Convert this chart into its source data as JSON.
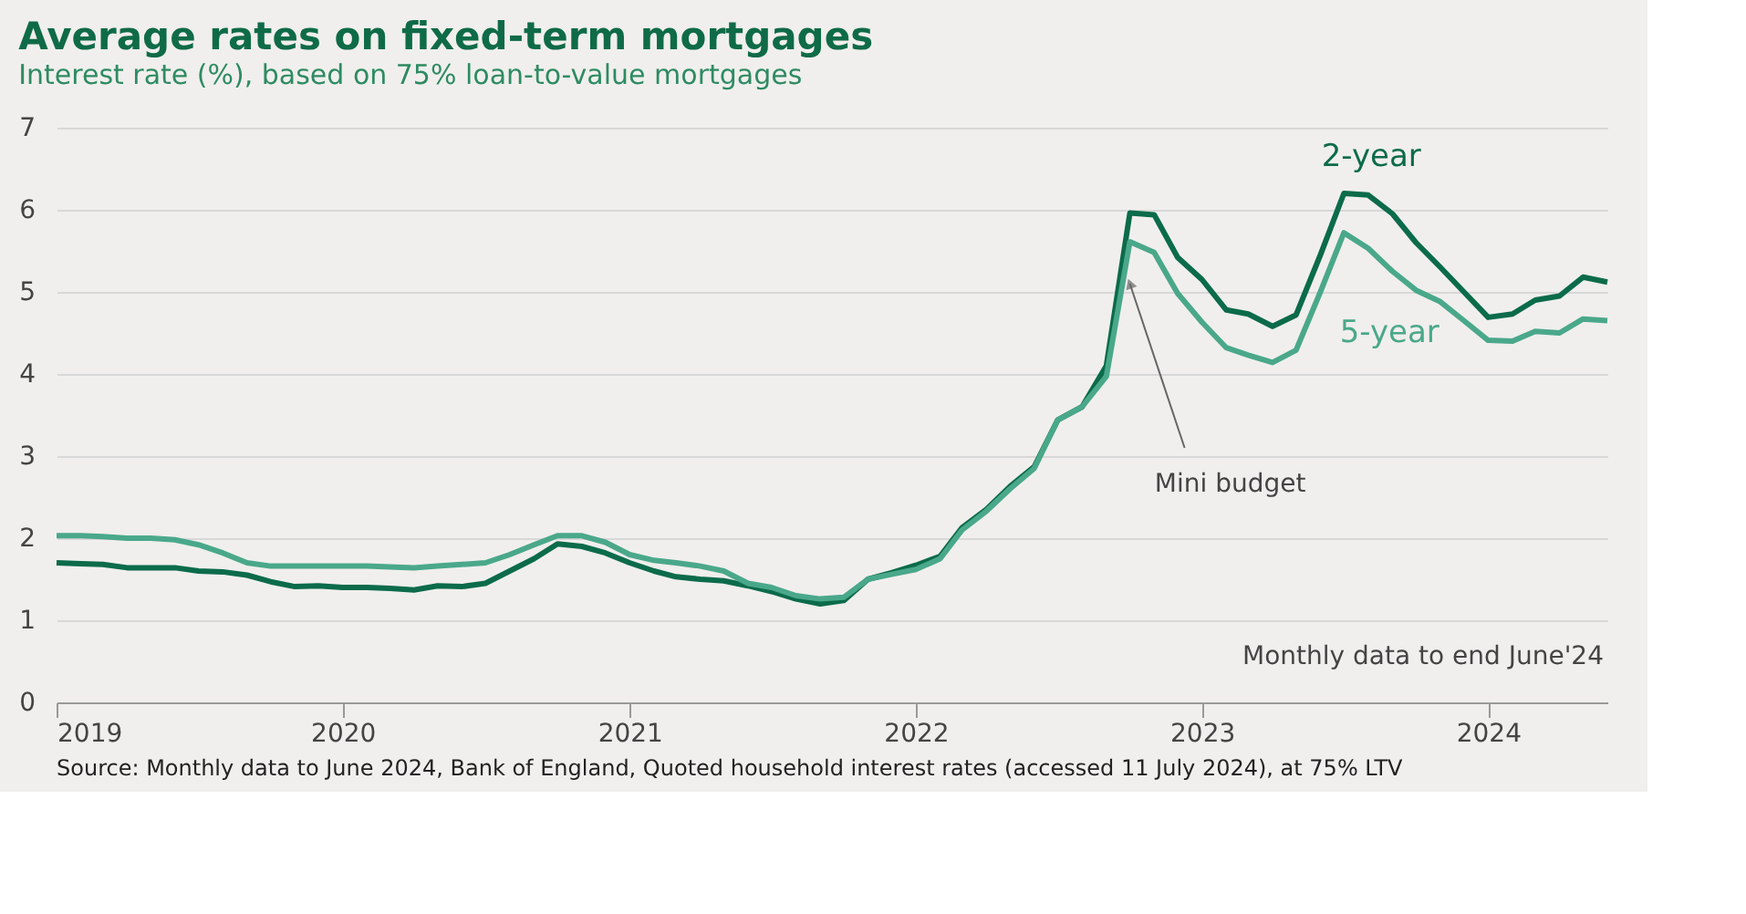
{
  "chart_data": {
    "type": "line",
    "title": "Average rates on fixed-term mortgages",
    "subtitle": "Interest rate (%), based on 75% loan-to-value mortgages",
    "x": [
      "2019-01",
      "2019-02",
      "2019-03",
      "2019-04",
      "2019-05",
      "2019-06",
      "2019-07",
      "2019-08",
      "2019-09",
      "2019-10",
      "2019-11",
      "2019-12",
      "2020-01",
      "2020-02",
      "2020-03",
      "2020-04",
      "2020-05",
      "2020-06",
      "2020-07",
      "2020-08",
      "2020-09",
      "2020-10",
      "2020-11",
      "2020-12",
      "2021-01",
      "2021-02",
      "2021-03",
      "2021-04",
      "2021-05",
      "2021-06",
      "2021-07",
      "2021-08",
      "2021-09",
      "2021-10",
      "2021-11",
      "2021-12",
      "2022-01",
      "2022-02",
      "2022-03",
      "2022-04",
      "2022-05",
      "2022-06",
      "2022-07",
      "2022-08",
      "2022-09",
      "2022-10",
      "2022-11",
      "2022-12",
      "2023-01",
      "2023-02",
      "2023-03",
      "2023-04",
      "2023-05",
      "2023-06",
      "2023-07",
      "2023-08",
      "2023-09",
      "2023-10",
      "2023-11",
      "2023-12",
      "2024-01",
      "2024-02",
      "2024-03",
      "2024-04",
      "2024-05",
      "2024-06"
    ],
    "series": [
      {
        "name": "2-year",
        "color": "#0b6b4a",
        "values": [
          1.7,
          1.69,
          1.68,
          1.64,
          1.64,
          1.64,
          1.6,
          1.59,
          1.55,
          1.47,
          1.41,
          1.42,
          1.4,
          1.4,
          1.39,
          1.37,
          1.42,
          1.41,
          1.45,
          1.6,
          1.75,
          1.93,
          1.9,
          1.82,
          1.7,
          1.6,
          1.53,
          1.5,
          1.48,
          1.42,
          1.35,
          1.26,
          1.2,
          1.24,
          1.5,
          1.58,
          1.67,
          1.78,
          2.13,
          2.35,
          2.63,
          2.87,
          3.44,
          3.6,
          4.1,
          5.96,
          5.94,
          5.42,
          5.15,
          4.78,
          4.73,
          4.58,
          4.72,
          5.45,
          6.2,
          6.18,
          5.95,
          5.6,
          5.3,
          5.0,
          4.69,
          4.73,
          4.9,
          4.95,
          5.18,
          5.12
        ]
      },
      {
        "name": "5-year",
        "color": "#4aa88a",
        "values": [
          2.03,
          2.03,
          2.02,
          2.0,
          2.0,
          1.98,
          1.92,
          1.82,
          1.7,
          1.66,
          1.66,
          1.66,
          1.66,
          1.66,
          1.65,
          1.64,
          1.66,
          1.68,
          1.7,
          1.8,
          1.92,
          2.03,
          2.03,
          1.95,
          1.8,
          1.73,
          1.7,
          1.66,
          1.6,
          1.45,
          1.4,
          1.3,
          1.26,
          1.28,
          1.5,
          1.56,
          1.62,
          1.75,
          2.1,
          2.33,
          2.6,
          2.85,
          3.44,
          3.6,
          3.97,
          5.61,
          5.48,
          4.98,
          4.63,
          4.32,
          4.23,
          4.14,
          4.29,
          5.0,
          5.72,
          5.53,
          5.25,
          5.02,
          4.88,
          4.65,
          4.41,
          4.4,
          4.52,
          4.5,
          4.67,
          4.65
        ]
      }
    ],
    "xlim": [
      "2019-01",
      "2024-06"
    ],
    "xticks": [
      "2019",
      "2020",
      "2021",
      "2022",
      "2023",
      "2024"
    ],
    "ylim": [
      0,
      7
    ],
    "yticks": [
      0,
      1,
      2,
      3,
      4,
      5,
      6,
      7
    ],
    "grid": "y",
    "legend": false,
    "line_style": "solid",
    "annotations": [
      {
        "text": "Mini budget",
        "x": "2022-10",
        "y": 5.1
      },
      "Monthly data to end June'24",
      "Source: Monthly data to June 2024, Bank of England, Quoted household interest rates (accessed 11 July 2024), at 75% LTV"
    ]
  }
}
